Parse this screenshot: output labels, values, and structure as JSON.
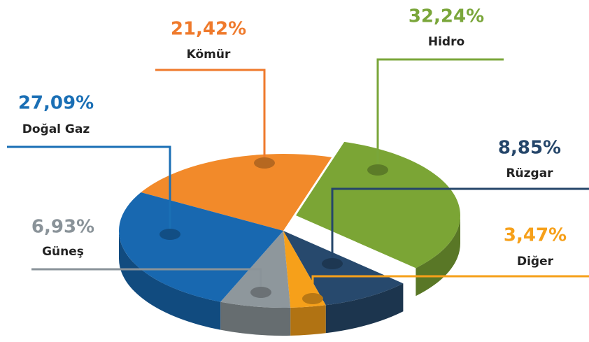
{
  "chart_data": {
    "type": "pie",
    "categories": [
      "Kömür",
      "Hidro",
      "Rüzgar",
      "Diğer",
      "Güneş",
      "Doğal Gaz"
    ],
    "values": [
      21.42,
      32.24,
      8.85,
      3.47,
      6.93,
      27.09
    ],
    "value_labels": [
      "21,42%",
      "32,24%",
      "8,85%",
      "3,47%",
      "6,93%",
      "27,09%"
    ],
    "colors": [
      "#f28a2a",
      "#7ba535",
      "#27496d",
      "#f6a01a",
      "#8e979c",
      "#1868b0"
    ],
    "label_colors": [
      "#ef7a2c",
      "#7aa63a",
      "#25466a",
      "#f6a01a",
      "#8a9399",
      "#1a6fb5"
    ]
  }
}
